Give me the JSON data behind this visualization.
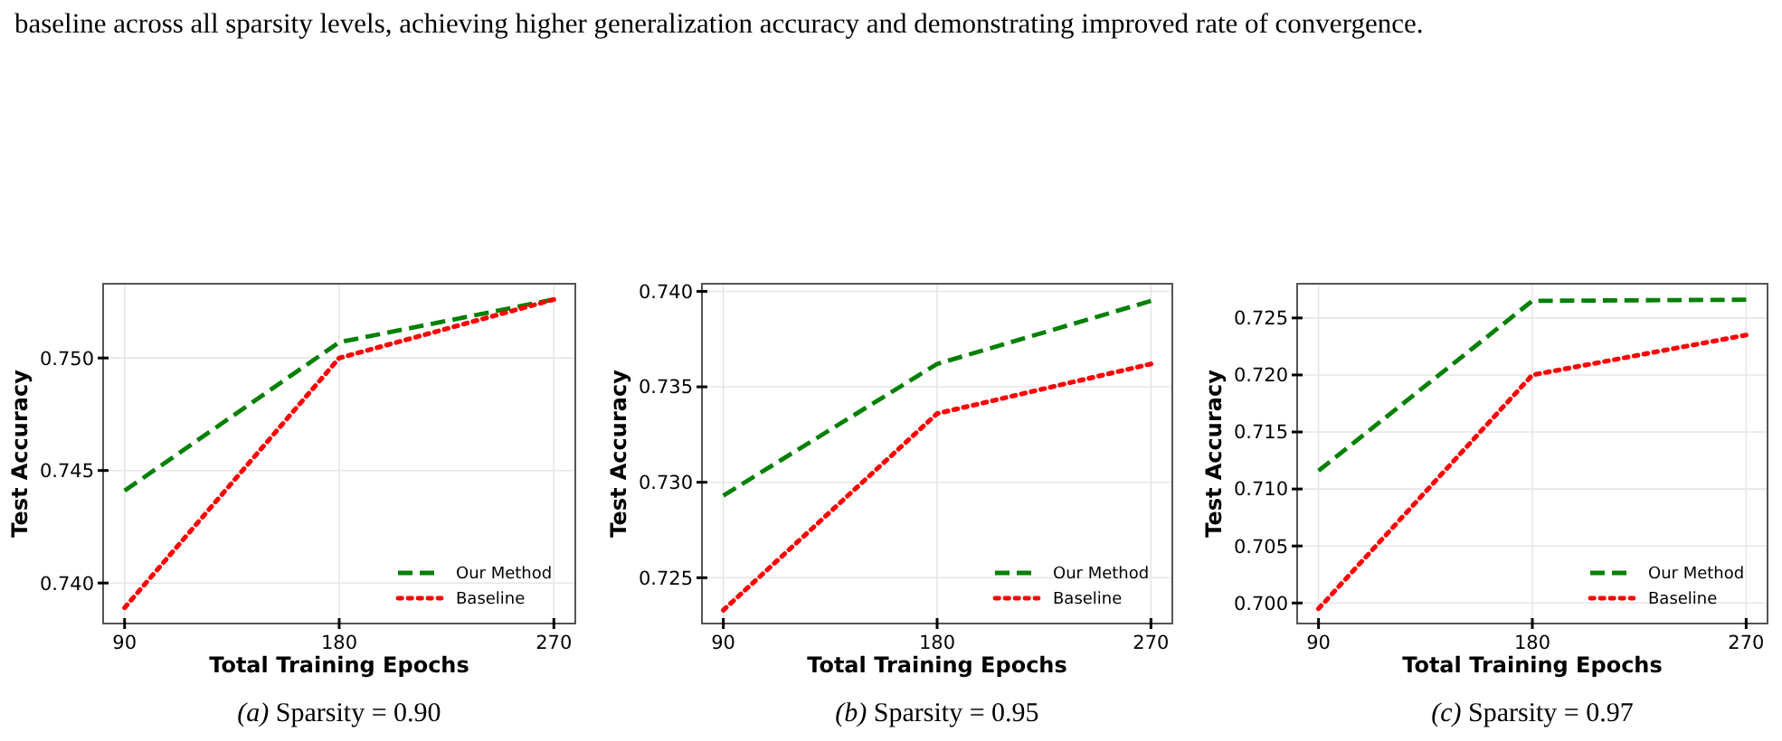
{
  "chart_data": [
    {
      "type": "line",
      "title": "(a) Sparsity = 0.90",
      "xlabel": "Total Training Epochs",
      "ylabel": "Test Accuracy",
      "annotations": [
        "baseline across all sparsity levels, achieving higher generalization accuracy and demonstrating improved rate of convergence."
      ],
      "x": [
        90,
        180,
        270
      ],
      "xlim": [
        81,
        279
      ],
      "xticks": [
        90,
        180,
        270
      ],
      "ylim": [
        0.7382,
        0.7533
      ],
      "yticks": [
        {
          "value": 0.74,
          "label": "0.740"
        },
        {
          "value": 0.745,
          "label": "0.745"
        },
        {
          "value": 0.75,
          "label": "0.750"
        }
      ],
      "grid": true,
      "legend": "bottom right",
      "series": [
        {
          "name": "Our Method",
          "color": "#008000",
          "line_style": "dashed",
          "values": [
            0.7441,
            0.7507,
            0.7526
          ]
        },
        {
          "name": "Baseline",
          "color": "#ff0000",
          "line_style": "dotted",
          "values": [
            0.7389,
            0.75,
            0.7526
          ]
        }
      ]
    },
    {
      "type": "line",
      "title": "(b) Sparsity = 0.95",
      "xlabel": "Total Training Epochs",
      "ylabel": "Test Accuracy",
      "x": [
        90,
        180,
        270
      ],
      "xlim": [
        81,
        279
      ],
      "xticks": [
        90,
        180,
        270
      ],
      "ylim": [
        0.7226,
        0.7404
      ],
      "yticks": [
        {
          "value": 0.725,
          "label": "0.725"
        },
        {
          "value": 0.73,
          "label": "0.730"
        },
        {
          "value": 0.735,
          "label": "0.735"
        },
        {
          "value": 0.74,
          "label": "0.740"
        }
      ],
      "grid": true,
      "legend": "bottom right",
      "series": [
        {
          "name": "Our Method",
          "color": "#008000",
          "line_style": "dashed",
          "values": [
            0.7293,
            0.7362,
            0.7395
          ]
        },
        {
          "name": "Baseline",
          "color": "#ff0000",
          "line_style": "dotted",
          "values": [
            0.7233,
            0.7336,
            0.7362
          ]
        }
      ]
    },
    {
      "type": "line",
      "title": "(c) Sparsity = 0.97",
      "xlabel": "Total Training Epochs",
      "ylabel": "Test Accuracy",
      "x": [
        90,
        180,
        270
      ],
      "xlim": [
        81,
        279
      ],
      "xticks": [
        90,
        180,
        270
      ],
      "ylim": [
        0.6982,
        0.728
      ],
      "yticks": [
        {
          "value": 0.7,
          "label": "0.700"
        },
        {
          "value": 0.705,
          "label": "0.705"
        },
        {
          "value": 0.71,
          "label": "0.710"
        },
        {
          "value": 0.715,
          "label": "0.715"
        },
        {
          "value": 0.72,
          "label": "0.720"
        },
        {
          "value": 0.725,
          "label": "0.725"
        }
      ],
      "grid": true,
      "legend": "bottom right",
      "series": [
        {
          "name": "Our Method",
          "color": "#008000",
          "line_style": "dashed",
          "values": [
            0.7116,
            0.7265,
            0.7266
          ]
        },
        {
          "name": "Baseline",
          "color": "#ff0000",
          "line_style": "dotted",
          "values": [
            0.6995,
            0.72,
            0.7235
          ]
        }
      ]
    }
  ]
}
